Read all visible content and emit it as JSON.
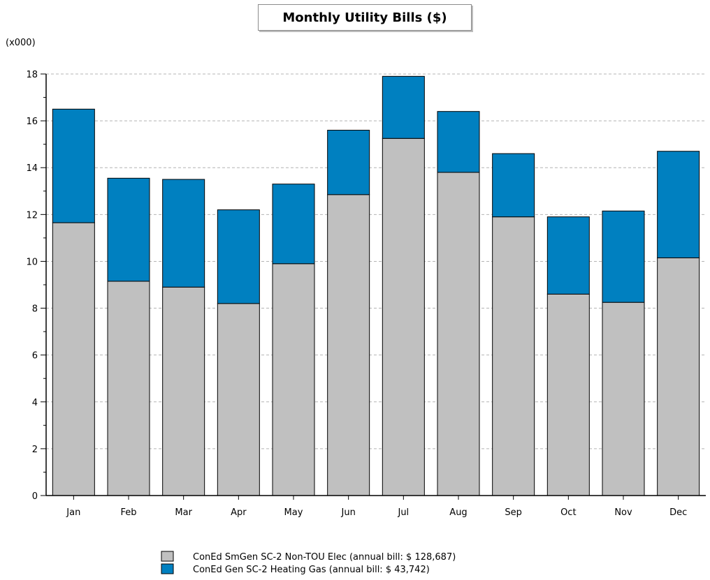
{
  "chart_data": {
    "type": "bar",
    "stacked": true,
    "title": "Monthly Utility Bills ($)",
    "y_unit_label": "(x000)",
    "categories": [
      "Jan",
      "Feb",
      "Mar",
      "Apr",
      "May",
      "Jun",
      "Jul",
      "Aug",
      "Sep",
      "Oct",
      "Nov",
      "Dec"
    ],
    "series": [
      {
        "name": "ConEd SmGen SC-2 Non-TOU Elec (annual bill: $ 128,687)",
        "color": "#c0c0c0",
        "values": [
          11.65,
          9.15,
          8.9,
          8.2,
          9.9,
          12.85,
          15.25,
          13.8,
          11.9,
          8.6,
          8.25,
          10.15
        ]
      },
      {
        "name": "ConEd Gen SC-2 Heating Gas (annual bill: $ 43,742)",
        "color": "#0080c0",
        "values": [
          4.85,
          4.4,
          4.6,
          4.0,
          3.4,
          2.75,
          2.65,
          2.6,
          2.7,
          3.3,
          3.9,
          4.55
        ]
      }
    ],
    "ylim": [
      0,
      18
    ],
    "yticks": [
      0,
      2,
      4,
      6,
      8,
      10,
      12,
      14,
      16,
      18
    ],
    "grid": true,
    "legend_position": "bottom"
  }
}
